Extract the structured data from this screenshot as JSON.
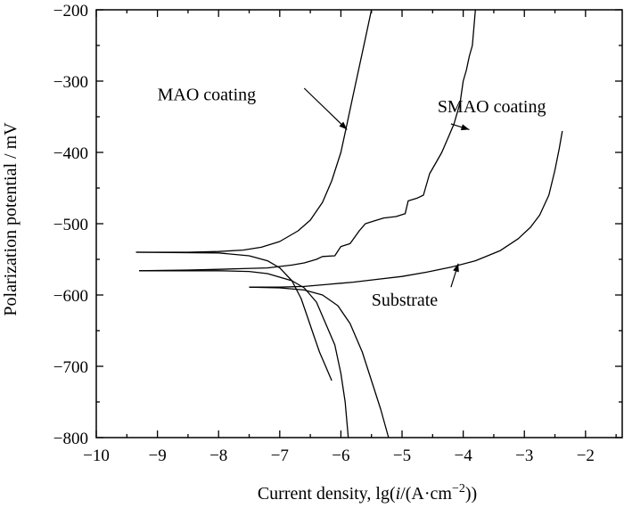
{
  "chart_data": {
    "type": "line",
    "xlabel_main": "Current density, lg(",
    "xlabel_var": "i",
    "xlabel_units": "/(A·cm",
    "xlabel_exp": "−2",
    "xlabel_close": "))",
    "ylabel": "Polarization potential / mV",
    "xlim": [
      -10,
      -1.4
    ],
    "ylim": [
      -800,
      -200
    ],
    "x_ticks": [
      -10,
      -9,
      -8,
      -7,
      -6,
      -5,
      -4,
      -3,
      -2
    ],
    "x_tick_labels": [
      "−10",
      "−9",
      "−8",
      "−7",
      "−6",
      "−5",
      "−4",
      "−3",
      "−2"
    ],
    "y_ticks": [
      -200,
      -300,
      -400,
      -500,
      -600,
      -700,
      -800
    ],
    "y_tick_labels": [
      "−200",
      "−300",
      "−400",
      "−500",
      "−600",
      "−700",
      "−800"
    ],
    "grid": false,
    "series": [
      {
        "name": "MAO coating",
        "anodic": [
          [
            -9.35,
            -540
          ],
          [
            -8.5,
            -540
          ],
          [
            -8.0,
            -539
          ],
          [
            -7.6,
            -537
          ],
          [
            -7.3,
            -533
          ],
          [
            -7.0,
            -525
          ],
          [
            -6.7,
            -510
          ],
          [
            -6.5,
            -495
          ],
          [
            -6.3,
            -470
          ],
          [
            -6.15,
            -440
          ],
          [
            -6.0,
            -400
          ],
          [
            -5.9,
            -360
          ],
          [
            -5.8,
            -320
          ],
          [
            -5.7,
            -280
          ],
          [
            -5.6,
            -240
          ],
          [
            -5.5,
            -200
          ]
        ],
        "cathodic": [
          [
            -9.35,
            -540
          ],
          [
            -8.0,
            -541
          ],
          [
            -7.5,
            -545
          ],
          [
            -7.2,
            -552
          ],
          [
            -7.0,
            -562
          ],
          [
            -6.8,
            -580
          ],
          [
            -6.65,
            -605
          ],
          [
            -6.55,
            -630
          ],
          [
            -6.45,
            -655
          ],
          [
            -6.35,
            -680
          ],
          [
            -6.25,
            -700
          ],
          [
            -6.15,
            -720
          ]
        ]
      },
      {
        "name": "SMAO coating",
        "anodic": [
          [
            -9.3,
            -566
          ],
          [
            -8.5,
            -565
          ],
          [
            -8.0,
            -564
          ],
          [
            -7.6,
            -563
          ],
          [
            -7.2,
            -562
          ],
          [
            -7.0,
            -560
          ],
          [
            -6.8,
            -558
          ],
          [
            -6.6,
            -555
          ],
          [
            -6.4,
            -550
          ],
          [
            -6.3,
            -546
          ],
          [
            -6.1,
            -545
          ],
          [
            -6.0,
            -532
          ],
          [
            -5.85,
            -528
          ],
          [
            -5.7,
            -510
          ],
          [
            -5.6,
            -500
          ],
          [
            -5.45,
            -496
          ],
          [
            -5.3,
            -492
          ],
          [
            -5.1,
            -490
          ],
          [
            -4.95,
            -486
          ],
          [
            -4.9,
            -468
          ],
          [
            -4.75,
            -464
          ],
          [
            -4.65,
            -460
          ],
          [
            -4.55,
            -430
          ],
          [
            -4.45,
            -415
          ],
          [
            -4.35,
            -400
          ],
          [
            -4.25,
            -380
          ],
          [
            -4.15,
            -360
          ],
          [
            -4.05,
            -330
          ],
          [
            -4.0,
            -300
          ],
          [
            -3.95,
            -285
          ],
          [
            -3.9,
            -265
          ],
          [
            -3.85,
            -250
          ],
          [
            -3.8,
            -200
          ]
        ],
        "cathodic": [
          [
            -9.3,
            -566
          ],
          [
            -8.0,
            -566
          ],
          [
            -7.5,
            -567
          ],
          [
            -7.2,
            -570
          ],
          [
            -7.0,
            -575
          ],
          [
            -6.8,
            -580
          ],
          [
            -6.6,
            -590
          ],
          [
            -6.4,
            -610
          ],
          [
            -6.25,
            -640
          ],
          [
            -6.1,
            -670
          ],
          [
            -6.0,
            -710
          ],
          [
            -5.93,
            -750
          ],
          [
            -5.88,
            -800
          ]
        ]
      },
      {
        "name": "Substrate",
        "anodic": [
          [
            -7.5,
            -589
          ],
          [
            -7.0,
            -589
          ],
          [
            -6.6,
            -588
          ],
          [
            -6.2,
            -585
          ],
          [
            -5.8,
            -582
          ],
          [
            -5.4,
            -578
          ],
          [
            -5.0,
            -574
          ],
          [
            -4.6,
            -568
          ],
          [
            -4.2,
            -561
          ],
          [
            -3.8,
            -552
          ],
          [
            -3.4,
            -538
          ],
          [
            -3.1,
            -521
          ],
          [
            -2.9,
            -505
          ],
          [
            -2.75,
            -488
          ],
          [
            -2.6,
            -460
          ],
          [
            -2.5,
            -425
          ],
          [
            -2.43,
            -395
          ],
          [
            -2.38,
            -370
          ]
        ],
        "cathodic": [
          [
            -7.5,
            -589
          ],
          [
            -7.0,
            -590
          ],
          [
            -6.6,
            -593
          ],
          [
            -6.3,
            -600
          ],
          [
            -6.05,
            -615
          ],
          [
            -5.85,
            -640
          ],
          [
            -5.65,
            -680
          ],
          [
            -5.5,
            -720
          ],
          [
            -5.35,
            -760
          ],
          [
            -5.22,
            -800
          ]
        ]
      }
    ],
    "annotations": [
      {
        "text": "MAO coating",
        "text_at": [
          -9.0,
          -327
        ],
        "arrow_from": [
          -6.6,
          -310
        ],
        "arrow_to": [
          -5.9,
          -368
        ]
      },
      {
        "text": "SMAO coating",
        "text_at": [
          -4.42,
          -344
        ],
        "arrow_from": [
          -4.2,
          -360
        ],
        "arrow_to": [
          -3.9,
          -368
        ]
      },
      {
        "text": "Substrate",
        "text_at": [
          -5.5,
          -615
        ],
        "arrow_from": [
          -4.2,
          -589
        ],
        "arrow_to": [
          -4.08,
          -556
        ]
      }
    ]
  }
}
